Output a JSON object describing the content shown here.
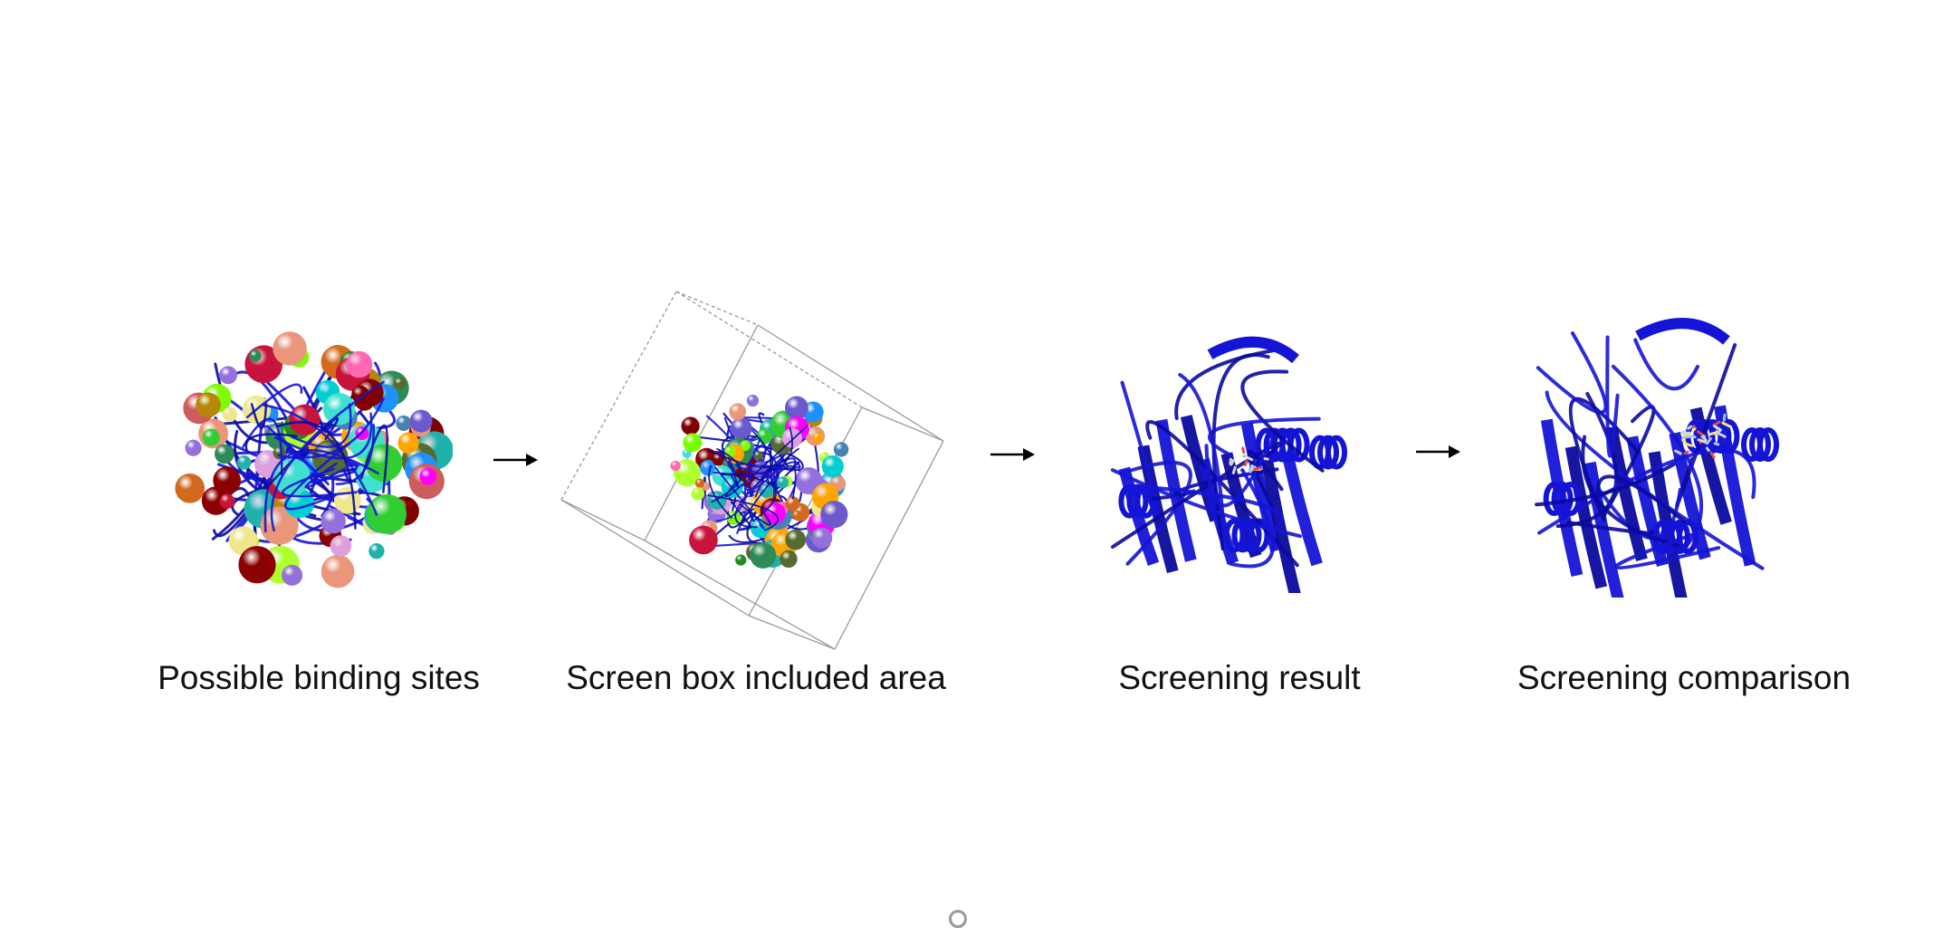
{
  "steps": [
    {
      "caption": "Possible binding sites",
      "icon": "protein-binding-sites-spheres"
    },
    {
      "caption": "Screen box included area",
      "icon": "protein-in-screen-box"
    },
    {
      "caption": "Screening result",
      "icon": "protein-ribbon-with-ligand"
    },
    {
      "caption": "Screening comparison",
      "icon": "protein-ribbon-with-ligands-compared"
    }
  ],
  "colors": {
    "ribbon": "#1414d6",
    "ribbon_dark": "#0a0a9e",
    "box_line": "#9a9a9a",
    "arrow": "#000000"
  }
}
